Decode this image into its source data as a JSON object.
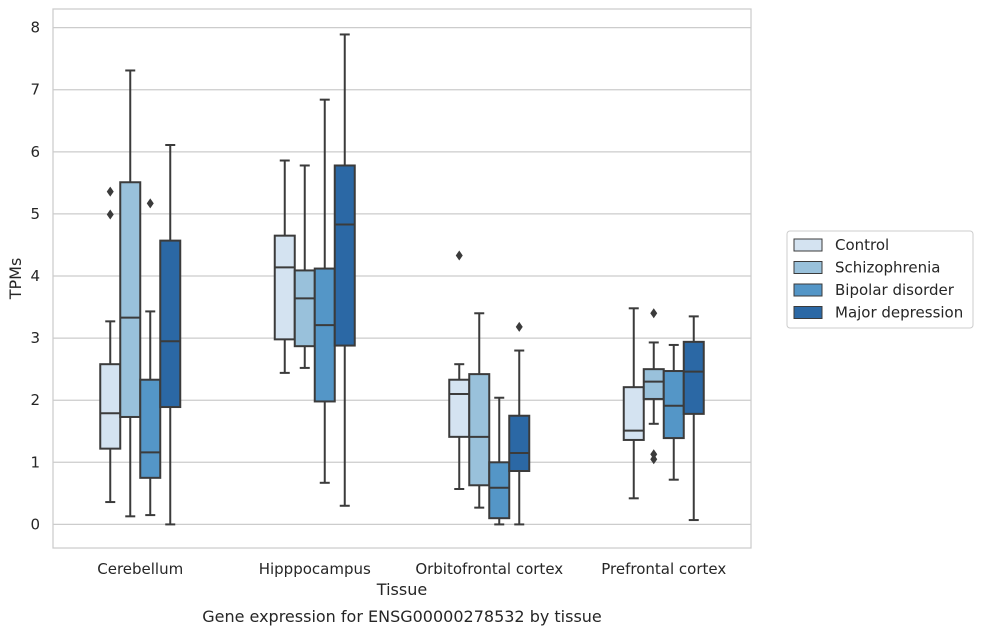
{
  "chart_data": {
    "type": "box",
    "title": "",
    "caption": "Gene expression for ENSG00000278532 by tissue",
    "xlabel": "Tissue",
    "ylabel": "TPMs",
    "ylim": [
      -0.38,
      8.3
    ],
    "yticks": [
      0,
      1,
      2,
      3,
      4,
      5,
      6,
      7,
      8
    ],
    "grid": true,
    "legend_position": "right",
    "categories": [
      "Cerebellum",
      "Hipppocampus",
      "Orbitofrontal cortex",
      "Prefrontal cortex"
    ],
    "series": [
      {
        "name": "Control",
        "color": "#d4e3f1",
        "boxes": [
          {
            "whisker_low": 0.36,
            "q1": 1.22,
            "median": 1.79,
            "q3": 2.58,
            "whisker_high": 3.27,
            "outliers": [
              4.99,
              5.36
            ]
          },
          {
            "whisker_low": 2.44,
            "q1": 2.98,
            "median": 4.14,
            "q3": 4.65,
            "whisker_high": 5.86,
            "outliers": []
          },
          {
            "whisker_low": 0.57,
            "q1": 1.41,
            "median": 2.1,
            "q3": 2.33,
            "whisker_high": 2.58,
            "outliers": [
              4.33
            ]
          },
          {
            "whisker_low": 0.42,
            "q1": 1.36,
            "median": 1.51,
            "q3": 2.21,
            "whisker_high": 3.48,
            "outliers": []
          }
        ]
      },
      {
        "name": "Schizophrenia",
        "color": "#99c1db",
        "boxes": [
          {
            "whisker_low": 0.13,
            "q1": 1.73,
            "median": 3.33,
            "q3": 5.51,
            "whisker_high": 7.31,
            "outliers": []
          },
          {
            "whisker_low": 2.52,
            "q1": 2.87,
            "median": 3.64,
            "q3": 4.09,
            "whisker_high": 5.78,
            "outliers": []
          },
          {
            "whisker_low": 0.27,
            "q1": 0.63,
            "median": 1.41,
            "q3": 2.42,
            "whisker_high": 3.4,
            "outliers": []
          },
          {
            "whisker_low": 1.62,
            "q1": 2.02,
            "median": 2.3,
            "q3": 2.5,
            "whisker_high": 2.93,
            "outliers": [
              1.05,
              1.13,
              3.4
            ]
          }
        ]
      },
      {
        "name": "Bipolar disorder",
        "color": "#5496c7",
        "boxes": [
          {
            "whisker_low": 0.15,
            "q1": 0.75,
            "median": 1.16,
            "q3": 2.33,
            "whisker_high": 3.43,
            "outliers": [
              5.17
            ]
          },
          {
            "whisker_low": 0.67,
            "q1": 1.98,
            "median": 3.21,
            "q3": 4.12,
            "whisker_high": 6.84,
            "outliers": []
          },
          {
            "whisker_low": 0.0,
            "q1": 0.1,
            "median": 0.59,
            "q3": 1.0,
            "whisker_high": 2.04,
            "outliers": []
          },
          {
            "whisker_low": 0.72,
            "q1": 1.39,
            "median": 1.91,
            "q3": 2.47,
            "whisker_high": 2.89,
            "outliers": []
          }
        ]
      },
      {
        "name": "Major depression",
        "color": "#2b68a5",
        "boxes": [
          {
            "whisker_low": 0.0,
            "q1": 1.89,
            "median": 2.95,
            "q3": 4.57,
            "whisker_high": 6.11,
            "outliers": []
          },
          {
            "whisker_low": 0.3,
            "q1": 2.88,
            "median": 4.83,
            "q3": 5.78,
            "whisker_high": 7.89,
            "outliers": []
          },
          {
            "whisker_low": 0.0,
            "q1": 0.86,
            "median": 1.15,
            "q3": 1.75,
            "whisker_high": 2.8,
            "outliers": [
              3.18
            ]
          },
          {
            "whisker_low": 0.07,
            "q1": 1.78,
            "median": 2.46,
            "q3": 2.94,
            "whisker_high": 3.35,
            "outliers": []
          }
        ]
      }
    ]
  }
}
